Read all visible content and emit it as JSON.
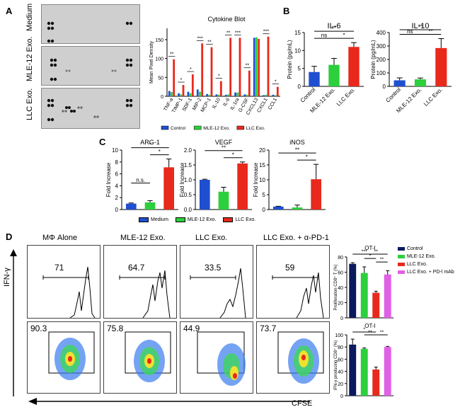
{
  "panels": {
    "a": "A",
    "b": "B",
    "c": "C",
    "d": "D"
  },
  "panel_a": {
    "blot_rows": [
      "Medium",
      "MLE-12 Exo.",
      "LLC Exo."
    ],
    "chart_title": "Cytokine Blot"
  },
  "panel_d": {
    "flow_titles": [
      "MΦ Alone",
      "MLE-12 Exo.",
      "LLC Exo.",
      "LLC Exo. + α-PD-1"
    ],
    "histogram_values": [
      "71",
      "64.7",
      "33.5",
      "59"
    ],
    "density_values": [
      "90.3",
      "75.8",
      "44.9",
      "73.7"
    ],
    "y_axis_label": "IFN-γ",
    "x_axis_label": "CFSE"
  },
  "chart_data": [
    {
      "type": "bar",
      "id": "cytokine-blot",
      "title": "Cytokine Blot",
      "ylabel": "Mean Pixel Density",
      "ylim": [
        0,
        180
      ],
      "yticks": [
        "0",
        "50",
        "100",
        "150"
      ],
      "categories": [
        "TNF-a",
        "TIMP-1",
        "SDF-1",
        "MIP-2",
        "MCP-1",
        "IL-10",
        "IL-6",
        "IL-1ra",
        "G-CSF",
        "CXCL13",
        "CXCL1",
        "CCL1"
      ],
      "series": [
        {
          "name": "Control",
          "color": "#1f4fd1",
          "values": [
            14,
            8,
            12,
            18,
            6,
            5,
            4,
            10,
            5,
            155,
            3,
            4
          ]
        },
        {
          "name": "MLE-12 Exo.",
          "color": "#2ccf3c",
          "values": [
            11,
            5,
            8,
            12,
            4,
            4,
            5,
            10,
            4,
            156,
            4,
            3
          ]
        },
        {
          "name": "LLC Exo.",
          "color": "#e8291c",
          "values": [
            98,
            30,
            58,
            140,
            130,
            40,
            155,
            155,
            68,
            152,
            158,
            25
          ]
        }
      ],
      "significance": [
        "**",
        "*",
        "*",
        "***",
        "**",
        "*",
        "**",
        "***",
        "**",
        "",
        "***",
        "*"
      ],
      "legend": [
        "Control",
        "MLE-12 Exo.",
        "LLC Exo."
      ]
    },
    {
      "type": "bar",
      "id": "il6",
      "title": "IL-6",
      "ylabel": "Protein (pg/mL)",
      "ylim": [
        0,
        15
      ],
      "yticks": [
        "0",
        "5",
        "10",
        "15"
      ],
      "categories": [
        "Control",
        "MLE-12 Exo.",
        "LLC Exo."
      ],
      "values": [
        4,
        6,
        11
      ],
      "errors": [
        1.6,
        1.8,
        1.2
      ],
      "colors": [
        "#1f4fd1",
        "#2ccf3c",
        "#e8291c"
      ],
      "comparisons": [
        {
          "label": "ns"
        },
        {
          "label": "*"
        },
        {
          "label": "**"
        }
      ]
    },
    {
      "type": "bar",
      "id": "il10",
      "title": "IL-10",
      "ylabel": "Protein (pg/mL)",
      "ylim": [
        0,
        400
      ],
      "yticks": [
        "0",
        "100",
        "200",
        "300",
        "400"
      ],
      "categories": [
        "Control",
        "MLE-12 Exo.",
        "LLC Exo."
      ],
      "values": [
        45,
        52,
        285
      ],
      "errors": [
        18,
        10,
        70
      ],
      "colors": [
        "#1f4fd1",
        "#2ccf3c",
        "#e8291c"
      ],
      "comparisons": [
        {
          "label": "ns"
        },
        {
          "label": "**"
        },
        {
          "label": "**"
        }
      ]
    },
    {
      "type": "bar",
      "id": "arg1",
      "title": "ARG-1",
      "ylabel": "Fold Increase",
      "ylim": [
        0,
        10
      ],
      "yticks": [
        "0",
        "2",
        "4",
        "6",
        "8",
        "10"
      ],
      "categories": [
        "Medium",
        "MLE-12 Exo.",
        "LLC Exo."
      ],
      "values": [
        1.0,
        1.2,
        7.1
      ],
      "errors": [
        0.1,
        0.3,
        1.4
      ],
      "colors": [
        "#1f4fd1",
        "#2ccf3c",
        "#e8291c"
      ],
      "comparisons": [
        {
          "label": "n.s."
        },
        {
          "label": "*"
        },
        {
          "label": "*"
        }
      ]
    },
    {
      "type": "bar",
      "id": "vegf",
      "title": "VEGF",
      "ylabel": "Fold Increase",
      "ylim": [
        0,
        2.0
      ],
      "yticks": [
        "0.0",
        "0.5",
        "1.0",
        "1.5",
        "2.0"
      ],
      "categories": [
        "Medium",
        "MLE-12 Exo.",
        "LLC Exo."
      ],
      "values": [
        1.0,
        0.6,
        1.55
      ],
      "errors": [
        0.02,
        0.15,
        0.05
      ],
      "colors": [
        "#1f4fd1",
        "#2ccf3c",
        "#e8291c"
      ],
      "comparisons": [
        {
          "label": "*"
        },
        {
          "label": "**"
        }
      ]
    },
    {
      "type": "bar",
      "id": "inos",
      "title": "iNOS",
      "ylabel": "Fold Increase",
      "ylim": [
        0,
        20
      ],
      "yticks": [
        "0",
        "5",
        "10",
        "15",
        "20"
      ],
      "categories": [
        "Medium",
        "MLE-12 Exo.",
        "LLC Exo."
      ],
      "values": [
        1.0,
        0.7,
        10.2
      ],
      "errors": [
        0.1,
        0.8,
        5.0
      ],
      "colors": [
        "#1f4fd1",
        "#2ccf3c",
        "#e8291c"
      ],
      "comparisons": [
        {
          "label": "*"
        },
        {
          "label": "**"
        }
      ]
    },
    {
      "type": "bar",
      "id": "prolif",
      "title": "OT-I",
      "ylabel": "Proliferation CD8⁺ T (%)",
      "ylim": [
        0,
        80
      ],
      "yticks": [
        "0",
        "20",
        "40",
        "60",
        "80"
      ],
      "categories": [
        "Control",
        "MLE-12 Exo.",
        "LLC Exo.",
        "LLC Exo. + PD-l mAb"
      ],
      "values": [
        71,
        59,
        33,
        57
      ],
      "errors": [
        1.5,
        8,
        2,
        5
      ],
      "colors": [
        "#0a1a5c",
        "#2ccf3c",
        "#e8291c",
        "#e060e6"
      ],
      "comparisons": [
        {
          "label": "*"
        },
        {
          "label": "**"
        },
        {
          "label": "**"
        },
        {
          "label": "***"
        }
      ]
    },
    {
      "type": "bar",
      "id": "ifng",
      "title": "OT-I",
      "ylabel": "IFN-γ producing CD8⁺ (%)",
      "ylim": [
        0,
        100
      ],
      "yticks": [
        "0",
        "20",
        "40",
        "60",
        "80",
        "100"
      ],
      "categories": [
        "Control",
        "MLE-12 Exo.",
        "LLC Exo.",
        "LLC Exo. + PD-l mAb"
      ],
      "values": [
        84,
        77,
        43,
        80
      ],
      "errors": [
        9,
        1.5,
        4,
        1
      ],
      "colors": [
        "#0a1a5c",
        "#2ccf3c",
        "#e8291c",
        "#e060e6"
      ],
      "comparisons": [
        {
          "label": "*"
        },
        {
          "label": "**"
        },
        {
          "label": "**"
        }
      ]
    }
  ],
  "legends": {
    "b_c": [
      "Medium",
      "MLE-12 Exo.",
      "LLC Exo."
    ],
    "d": [
      "Control",
      "MLE-12 Exo.",
      "LLC Exo.",
      "LLC Exo. + PD-l mAb"
    ]
  }
}
